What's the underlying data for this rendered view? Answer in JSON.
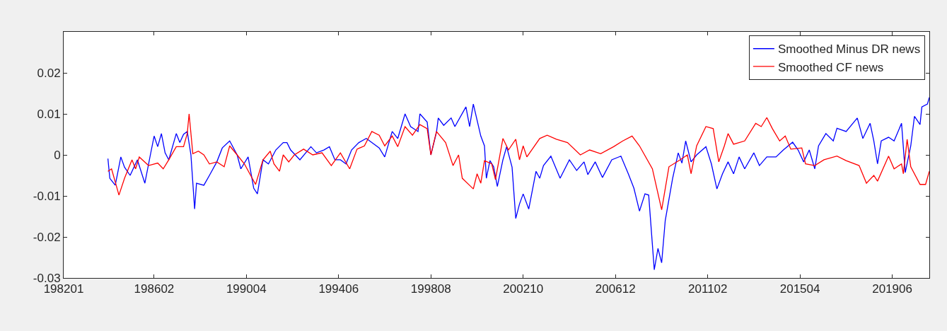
{
  "chart_data": {
    "type": "line",
    "xlim": [
      "1982-01",
      "2021-02"
    ],
    "xticks": [
      {
        "value": "1982-01",
        "label": "198201"
      },
      {
        "value": "1986-02",
        "label": "198602"
      },
      {
        "value": "1990-04",
        "label": "199004"
      },
      {
        "value": "1994-06",
        "label": "199406"
      },
      {
        "value": "1998-08",
        "label": "199808"
      },
      {
        "value": "2002-10",
        "label": "200210"
      },
      {
        "value": "2006-12",
        "label": "200612"
      },
      {
        "value": "2011-02",
        "label": "201102"
      },
      {
        "value": "2015-04",
        "label": "201504"
      },
      {
        "value": "2019-06",
        "label": "201906"
      }
    ],
    "ylim": [
      -0.03,
      0.03
    ],
    "yticks": [
      -0.03,
      -0.02,
      -0.01,
      0,
      0.01,
      0.02
    ],
    "legend": "top right",
    "series": [
      {
        "name": "Smoothed Minus DR news",
        "color": "#0000ff",
        "x": [
          "1984-01",
          "1984-02",
          "1984-05",
          "1984-08",
          "1984-10",
          "1985-01",
          "1985-05",
          "1985-09",
          "1985-12",
          "1986-02",
          "1986-04",
          "1986-06",
          "1986-08",
          "1986-10",
          "1987-02",
          "1987-04",
          "1987-06",
          "1987-08",
          "1987-10",
          "1987-12",
          "1988-01",
          "1988-05",
          "1988-08",
          "1988-12",
          "1989-03",
          "1989-07",
          "1989-11",
          "1990-01",
          "1990-05",
          "1990-08",
          "1990-10",
          "1991-01",
          "1991-04",
          "1991-08",
          "1991-12",
          "1992-02",
          "1992-04",
          "1992-09",
          "1993-03",
          "1993-06",
          "1993-10",
          "1994-01",
          "1994-04",
          "1994-07",
          "1994-10",
          "1995-01",
          "1995-05",
          "1995-09",
          "1995-12",
          "1996-04",
          "1996-07",
          "1996-11",
          "1997-02",
          "1997-06",
          "1997-09",
          "1998-01",
          "1998-02",
          "1998-06",
          "1998-08",
          "1998-11",
          "1998-12",
          "1999-03",
          "1999-07",
          "1999-09",
          "2000-03",
          "2000-05",
          "2000-07",
          "2000-11",
          "2001-01",
          "2001-02",
          "2001-04",
          "2001-06",
          "2001-08",
          "2001-11",
          "2002-01",
          "2002-04",
          "2002-06",
          "2002-08",
          "2002-10",
          "2003-01",
          "2003-05",
          "2003-07",
          "2003-09",
          "2004-01",
          "2004-06",
          "2004-11",
          "2005-03",
          "2005-07",
          "2005-09",
          "2006-01",
          "2006-05",
          "2006-10",
          "2007-03",
          "2007-07",
          "2007-10",
          "2008-01",
          "2008-04",
          "2008-06",
          "2008-09",
          "2008-11",
          "2009-01",
          "2009-03",
          "2009-07",
          "2009-10",
          "2009-12",
          "2010-02",
          "2010-05",
          "2010-08",
          "2011-01",
          "2011-04",
          "2011-07",
          "2011-10",
          "2012-01",
          "2012-04",
          "2012-07",
          "2012-10",
          "2013-03",
          "2013-06",
          "2013-10",
          "2014-03",
          "2014-07",
          "2014-12",
          "2015-03",
          "2015-06",
          "2015-09",
          "2015-12",
          "2016-02",
          "2016-06",
          "2016-10",
          "2016-12",
          "2017-05",
          "2017-11",
          "2018-02",
          "2018-06",
          "2018-08",
          "2018-10",
          "2018-12",
          "2019-04",
          "2019-07",
          "2019-11",
          "2020-01",
          "2020-04",
          "2020-06",
          "2020-09",
          "2020-10",
          "2021-01",
          "2021-02"
        ],
        "values": [
          -0.0009,
          -0.0057,
          -0.0074,
          -0.0005,
          -0.003,
          -0.005,
          -0.0012,
          -0.0069,
          0,
          0.0046,
          0.002,
          0.0052,
          0.0005,
          -0.0012,
          0.0052,
          0.003,
          0.005,
          0.0057,
          0,
          -0.0132,
          -0.0069,
          -0.0074,
          -0.005,
          -0.0017,
          0.0017,
          0.0034,
          0,
          -0.0034,
          -0.0005,
          -0.0081,
          -0.0095,
          -0.0012,
          -0.0022,
          0.0012,
          0.003,
          0.003,
          0.0012,
          -0.0012,
          0.002,
          0.0005,
          0.0012,
          0.002,
          -0.0012,
          -0.0012,
          -0.0022,
          0.0012,
          0.003,
          0.004,
          0.003,
          0.0017,
          -0.0005,
          0.0057,
          0.004,
          0.01,
          0.0069,
          0.0057,
          0.01,
          0.008,
          0,
          0.0055,
          0.009,
          0.0072,
          0.009,
          0.0069,
          0.0117,
          0.0069,
          0.0124,
          0.0046,
          0.0022,
          -0.0057,
          -0.0014,
          -0.0029,
          -0.0077,
          -0.0012,
          0.002,
          -0.003,
          -0.0155,
          -0.012,
          -0.0095,
          -0.0132,
          -0.004,
          -0.0057,
          -0.0026,
          -0.0003,
          -0.0057,
          -0.0012,
          -0.0038,
          -0.0017,
          -0.0048,
          -0.0017,
          -0.0055,
          -0.0012,
          -0.0003,
          -0.0046,
          -0.0081,
          -0.0137,
          -0.0095,
          -0.0098,
          -0.028,
          -0.0228,
          -0.0263,
          -0.016,
          -0.0057,
          0.0005,
          -0.002,
          0.0034,
          -0.0017,
          0,
          0.002,
          -0.0022,
          -0.0083,
          -0.0046,
          -0.0017,
          -0.0046,
          -0.0005,
          -0.0034,
          0.0005,
          -0.0026,
          -0.0005,
          -0.0005,
          0.0012,
          0.0031,
          0.0012,
          -0.0017,
          0.0012,
          -0.0034,
          0.0022,
          0.0052,
          0.0034,
          0.0065,
          0.0057,
          0.009,
          0.004,
          0.0077,
          0.0034,
          -0.0022,
          0.0034,
          0.0043,
          0.0034,
          0.0077,
          -0.0043,
          0.0022,
          0.0094,
          0.0074,
          0.0117,
          0.0124,
          0.014
        ]
      },
      {
        "name": "Smoothed CF news",
        "color": "#ff0000",
        "x": [
          "1984-01",
          "1984-03",
          "1984-07",
          "1984-10",
          "1985-02",
          "1985-04",
          "1985-06",
          "1985-11",
          "1986-04",
          "1986-07",
          "1986-10",
          "1987-02",
          "1987-06",
          "1987-08",
          "1987-09",
          "1987-11",
          "1988-02",
          "1988-05",
          "1988-08",
          "1988-12",
          "1989-04",
          "1989-07",
          "1989-11",
          "1990-03",
          "1990-09",
          "1991-01",
          "1991-05",
          "1991-07",
          "1991-10",
          "1991-12",
          "1992-03",
          "1992-06",
          "1992-11",
          "1993-04",
          "1993-09",
          "1994-02",
          "1994-07",
          "1994-12",
          "1995-04",
          "1995-08",
          "1995-12",
          "1996-04",
          "1996-07",
          "1996-11",
          "1997-02",
          "1997-06",
          "1997-10",
          "1998-02",
          "1998-06",
          "1998-08",
          "1998-11",
          "1999-04",
          "1999-08",
          "1999-11",
          "2000-01",
          "2000-07",
          "2000-09",
          "2000-11",
          "2001-01",
          "2001-05",
          "2001-07",
          "2001-11",
          "2002-02",
          "2002-06",
          "2002-08",
          "2002-10",
          "2002-12",
          "2003-07",
          "2003-11",
          "2004-04",
          "2004-10",
          "2005-05",
          "2005-10",
          "2006-04",
          "2006-11",
          "2007-04",
          "2007-09",
          "2008-01",
          "2008-08",
          "2009-01",
          "2009-05",
          "2009-11",
          "2010-03",
          "2010-05",
          "2010-08",
          "2011-01",
          "2011-05",
          "2011-08",
          "2011-11",
          "2012-01",
          "2012-04",
          "2012-10",
          "2013-04",
          "2013-07",
          "2013-10",
          "2014-01",
          "2014-05",
          "2014-08",
          "2014-11",
          "2015-05",
          "2015-07",
          "2015-12",
          "2016-05",
          "2016-12",
          "2017-05",
          "2017-12",
          "2018-04",
          "2018-08",
          "2018-10",
          "2019-04",
          "2019-07",
          "2019-11",
          "2019-12",
          "2020-02",
          "2020-04",
          "2020-09",
          "2020-12",
          "2021-02"
        ],
        "values": [
          -0.004,
          -0.0034,
          -0.0098,
          -0.0057,
          -0.0012,
          -0.0034,
          -0.0005,
          -0.0026,
          -0.002,
          -0.0034,
          -0.0012,
          0.002,
          0.002,
          0.0052,
          0.01,
          0.0003,
          0.0009,
          0,
          -0.0022,
          -0.0017,
          -0.0029,
          0.0022,
          0,
          -0.0022,
          -0.0072,
          -0.0012,
          0.0009,
          -0.0022,
          -0.004,
          0,
          -0.0017,
          0,
          0.0014,
          0,
          0.0005,
          -0.0026,
          0.0005,
          -0.0034,
          0.0014,
          0.0022,
          0.0057,
          0.0048,
          0.0022,
          0.0046,
          0.002,
          0.0069,
          0.0048,
          0.0074,
          0.0064,
          0,
          0.0057,
          0.003,
          -0.0026,
          0,
          -0.0057,
          -0.0083,
          -0.0046,
          -0.0069,
          -0.0014,
          -0.0022,
          -0.006,
          0.004,
          0.0012,
          0.0038,
          -0.0012,
          0.0022,
          -0.0005,
          0.004,
          0.0048,
          0.0038,
          0.003,
          0,
          0.0012,
          0.0003,
          0.002,
          0.0034,
          0.0046,
          0.0022,
          -0.0034,
          -0.0134,
          -0.0029,
          -0.0012,
          0,
          -0.0046,
          0.0022,
          0.0069,
          0.0064,
          -0.0017,
          0.0022,
          0.0052,
          0.0026,
          0.0034,
          0.0077,
          0.0069,
          0.0091,
          0.0064,
          0.0034,
          0.0046,
          0.0014,
          0.0017,
          -0.0022,
          -0.0026,
          -0.0012,
          -0.0003,
          -0.0014,
          -0.0026,
          -0.0069,
          -0.005,
          -0.0064,
          -0.0003,
          -0.0034,
          -0.0022,
          -0.0046,
          0.0038,
          -0.0029,
          -0.0072,
          -0.0072,
          -0.004
        ]
      }
    ]
  }
}
